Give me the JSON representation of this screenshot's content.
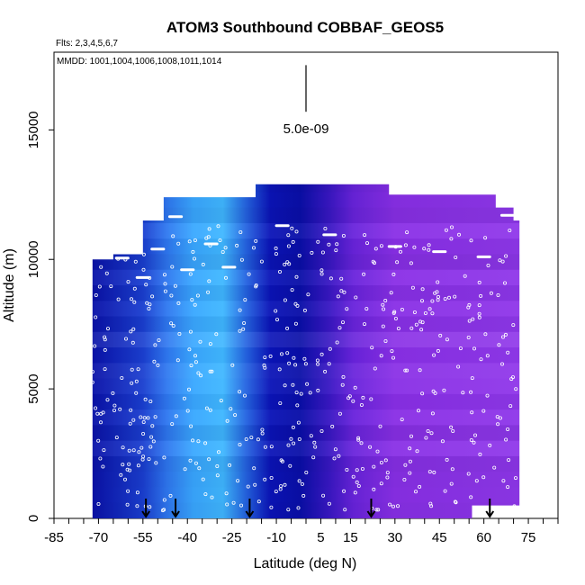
{
  "chart_data": {
    "type": "heatmap",
    "title": "ATOM3 Southbound COBBAF_GEOS5",
    "flights_text": "Flts: 2,3,4,5,6,7",
    "dates_text": "MMDD: 1001,1004,1006,1008,1011,1014",
    "xlabel": "Latitude (deg N)",
    "ylabel": "Altitude (m)",
    "xlim": [
      -85,
      85
    ],
    "ylim": [
      0,
      18000
    ],
    "x_ticks": [
      -85,
      -70,
      -55,
      -40,
      -25,
      -10,
      5,
      15,
      30,
      45,
      60,
      75
    ],
    "x_ticks_labels": [
      "-85",
      "-70",
      "-55",
      "-40",
      "-25",
      "-10",
      "5",
      "15",
      "30",
      "45",
      "60",
      "75"
    ],
    "y_ticks": [
      0,
      5000,
      10000,
      15000
    ],
    "y_ticks_labels": [
      "0",
      "5000",
      "10000",
      "15000"
    ],
    "scale_label": "5.0e-09",
    "colors": {
      "dark_blue": "#0a0fa8",
      "light_blue": "#3aa8ff",
      "purple": "#8a2ee8",
      "marker": "#ffffff"
    },
    "colormap": [
      {
        "lat": -72,
        "color": "#0a12a8"
      },
      {
        "lat": -55,
        "color": "#1b3fd0"
      },
      {
        "lat": -47,
        "color": "#2f78f0"
      },
      {
        "lat": -38,
        "color": "#3aa8ff"
      },
      {
        "lat": -28,
        "color": "#40b8ff"
      },
      {
        "lat": -20,
        "color": "#2462e0"
      },
      {
        "lat": -12,
        "color": "#0b14b8"
      },
      {
        "lat": -2,
        "color": "#0a0fa8"
      },
      {
        "lat": 8,
        "color": "#3b18c4"
      },
      {
        "lat": 16,
        "color": "#6a24dc"
      },
      {
        "lat": 30,
        "color": "#8a30e6"
      },
      {
        "lat": 72,
        "color": "#9038ea"
      }
    ],
    "column_tops": [
      {
        "lat": -72,
        "alt": 10000
      },
      {
        "lat": -65,
        "alt": 10200
      },
      {
        "lat": -55,
        "alt": 11500
      },
      {
        "lat": -48,
        "alt": 12400
      },
      {
        "lat": -20,
        "alt": 12400
      },
      {
        "lat": -17,
        "alt": 12900
      },
      {
        "lat": 26,
        "alt": 12900
      },
      {
        "lat": 28,
        "alt": 12500
      },
      {
        "lat": 62,
        "alt": 12500
      },
      {
        "lat": 64,
        "alt": 12000
      },
      {
        "lat": 70,
        "alt": 11500
      },
      {
        "lat": 72,
        "alt": 10000
      }
    ],
    "column_bottoms": [
      {
        "lat": -72,
        "alt": 1000
      },
      {
        "lat": -66,
        "alt": 0
      },
      {
        "lat": 56,
        "alt": 0
      },
      {
        "lat": 58,
        "alt": 500
      },
      {
        "lat": 72,
        "alt": 500
      }
    ],
    "arrows_lat": [
      -54,
      -44,
      -19,
      22,
      62
    ],
    "scale_bar_altitude": [
      15700,
      17500
    ],
    "scale_bar_lat": 0
  }
}
